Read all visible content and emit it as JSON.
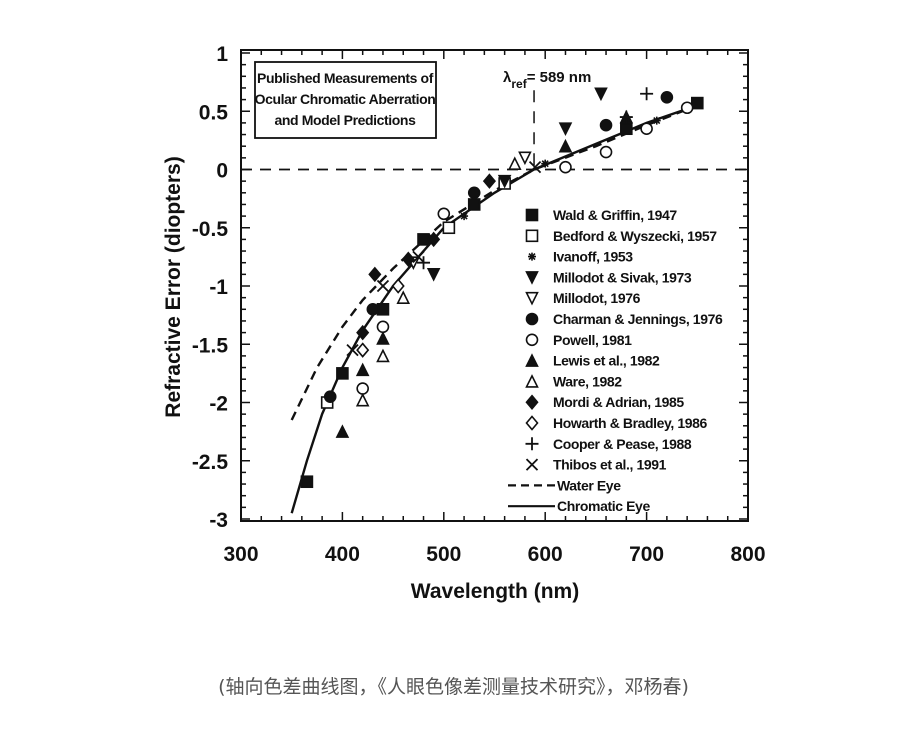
{
  "chart_data": {
    "type": "scatter",
    "title": "Published Measurements of Ocular Chromatic Aberration and Model Predictions",
    "title_lines": [
      "Published Measurements of",
      "Ocular Chromatic Aberration",
      "and Model Predictions"
    ],
    "xlabel": "Wavelength (nm)",
    "ylabel": "Refractive Error (diopters)",
    "xlim": [
      300,
      800
    ],
    "ylim": [
      -3,
      1
    ],
    "xticks": [
      300,
      400,
      500,
      600,
      700,
      800
    ],
    "yticks": [
      1,
      0.5,
      0,
      -0.5,
      -1,
      -1.5,
      -2,
      -2.5,
      -3
    ],
    "grid": false,
    "legend_position": "right",
    "reference": {
      "label_main": "λ",
      "label_sub": "ref",
      "label_rest": "= 589 nm",
      "x": 589
    },
    "series": [
      {
        "name": "Wald & Griffin, 1947",
        "marker": "square-filled",
        "points": [
          [
            365,
            -2.68
          ],
          [
            400,
            -1.75
          ],
          [
            440,
            -1.2
          ],
          [
            480,
            -0.6
          ],
          [
            530,
            -0.3
          ],
          [
            680,
            0.35
          ],
          [
            750,
            0.57
          ]
        ]
      },
      {
        "name": "Bedford & Wyszecki, 1957",
        "marker": "square-open",
        "points": [
          [
            385,
            -2.0
          ],
          [
            505,
            -0.5
          ],
          [
            560,
            -0.12
          ]
        ]
      },
      {
        "name": "Ivanoff, 1953",
        "marker": "asterisk",
        "points": [
          [
            520,
            -0.4
          ],
          [
            600,
            0.05
          ],
          [
            710,
            0.42
          ]
        ]
      },
      {
        "name": "Millodot & Sivak, 1973",
        "marker": "triangle-down-filled",
        "points": [
          [
            655,
            0.65
          ],
          [
            620,
            0.35
          ],
          [
            490,
            -0.9
          ],
          [
            560,
            -0.1
          ]
        ]
      },
      {
        "name": "Millodot, 1976",
        "marker": "triangle-down-open",
        "points": [
          [
            470,
            -0.8
          ],
          [
            580,
            0.1
          ]
        ]
      },
      {
        "name": "Charman & Jennings, 1976",
        "marker": "circle-filled",
        "points": [
          [
            388,
            -1.95
          ],
          [
            430,
            -1.2
          ],
          [
            530,
            -0.2
          ],
          [
            660,
            0.38
          ],
          [
            720,
            0.62
          ]
        ]
      },
      {
        "name": "Powell, 1981",
        "marker": "circle-open",
        "points": [
          [
            420,
            -1.88
          ],
          [
            440,
            -1.35
          ],
          [
            500,
            -0.38
          ],
          [
            620,
            0.02
          ],
          [
            660,
            0.15
          ],
          [
            700,
            0.35
          ],
          [
            740,
            0.53
          ]
        ]
      },
      {
        "name": "Lewis et al., 1982",
        "marker": "triangle-up-filled",
        "points": [
          [
            400,
            -2.25
          ],
          [
            420,
            -1.72
          ],
          [
            440,
            -1.45
          ],
          [
            620,
            0.2
          ],
          [
            680,
            0.45
          ]
        ]
      },
      {
        "name": "Ware, 1982",
        "marker": "triangle-up-open",
        "points": [
          [
            420,
            -1.98
          ],
          [
            440,
            -1.6
          ],
          [
            460,
            -1.1
          ],
          [
            570,
            0.05
          ]
        ]
      },
      {
        "name": "Mordi & Adrian, 1985",
        "marker": "diamond-filled",
        "points": [
          [
            420,
            -1.4
          ],
          [
            432,
            -0.9
          ],
          [
            465,
            -0.77
          ],
          [
            490,
            -0.6
          ],
          [
            545,
            -0.1
          ]
        ]
      },
      {
        "name": "Howarth & Bradley, 1986",
        "marker": "diamond-open",
        "points": [
          [
            420,
            -1.55
          ],
          [
            455,
            -1.0
          ]
        ]
      },
      {
        "name": "Cooper & Pease, 1988",
        "marker": "plus",
        "points": [
          [
            700,
            0.65
          ],
          [
            680,
            0.45
          ],
          [
            480,
            -0.8
          ]
        ]
      },
      {
        "name": "Thibos et al., 1991",
        "marker": "cross",
        "points": [
          [
            410,
            -1.55
          ],
          [
            440,
            -1.0
          ],
          [
            475,
            -0.75
          ],
          [
            590,
            0.02
          ]
        ]
      }
    ],
    "lines": [
      {
        "name": "Water Eye",
        "style": "dashed",
        "points": [
          [
            350,
            -2.15
          ],
          [
            375,
            -1.7
          ],
          [
            400,
            -1.35
          ],
          [
            420,
            -1.12
          ],
          [
            450,
            -0.85
          ],
          [
            500,
            -0.45
          ],
          [
            550,
            -0.18
          ],
          [
            589,
            0
          ],
          [
            650,
            0.2
          ],
          [
            700,
            0.38
          ],
          [
            750,
            0.55
          ]
        ]
      },
      {
        "name": "Chromatic Eye",
        "style": "solid",
        "points": [
          [
            350,
            -2.95
          ],
          [
            365,
            -2.5
          ],
          [
            380,
            -2.1
          ],
          [
            400,
            -1.7
          ],
          [
            420,
            -1.38
          ],
          [
            450,
            -1.0
          ],
          [
            500,
            -0.5
          ],
          [
            550,
            -0.2
          ],
          [
            589,
            0
          ],
          [
            650,
            0.22
          ],
          [
            700,
            0.4
          ],
          [
            750,
            0.55
          ]
        ]
      }
    ]
  },
  "caption": "(轴向色差曲线图，《人眼色像差测量技术研究》，邓杨春)"
}
